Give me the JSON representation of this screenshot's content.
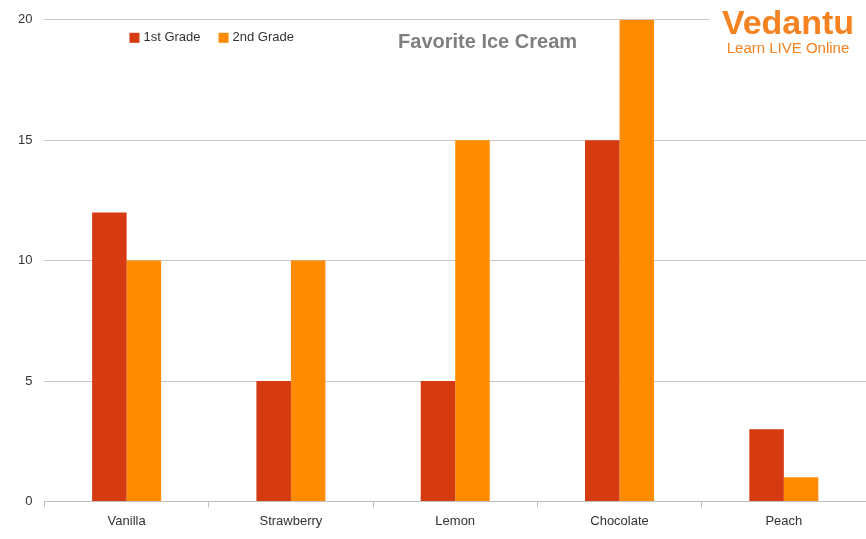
{
  "chart_data": {
    "type": "bar",
    "title": "Favorite Ice Cream",
    "categories": [
      "Vanilla",
      "Strawberry",
      "Lemon",
      "Chocolate",
      "Peach"
    ],
    "series": [
      {
        "name": "1st Grade",
        "color": "#d63a10",
        "values": [
          12,
          5,
          5,
          15,
          3
        ]
      },
      {
        "name": "2nd Grade",
        "color": "#ff8c00",
        "values": [
          10,
          10,
          15,
          20,
          1
        ]
      }
    ],
    "ylim": [
      0,
      20
    ],
    "yticks": [
      0,
      5,
      10,
      15,
      20
    ],
    "grid": true,
    "legend": "top-left",
    "annotations": [
      "Vedantu",
      "Learn LIVE Online"
    ]
  }
}
